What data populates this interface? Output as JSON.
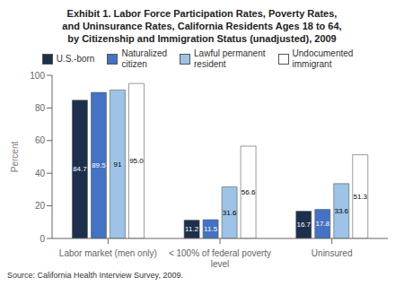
{
  "chart_data": {
    "type": "bar",
    "title": "Exhibit 1. Labor Force Participation Rates, Poverty Rates,\nand Uninsurance Rates, California Residents Ages 18 to 64,\nby Citizenship and Immigration Status (unadjusted), 2009",
    "categories": [
      "Labor market (men only)",
      "< 100% of federal poverty\nlevel",
      "Uninsured"
    ],
    "series": [
      {
        "name": "U.S.-born",
        "color": "#1c2f4d",
        "values": [
          84.7,
          11.2,
          16.7
        ]
      },
      {
        "name": "Naturalized\ncitizen",
        "color": "#4472c4",
        "values": [
          89.5,
          11.5,
          17.8
        ]
      },
      {
        "name": "Lawful permanent\nresident",
        "color": "#9dc3e6",
        "values": [
          91.0,
          31.6,
          33.6
        ]
      },
      {
        "name": "Undocumented\nimmigrant",
        "color": "#ffffff",
        "values": [
          95.0,
          56.6,
          51.3
        ],
        "value_labels": [
          "95.0",
          "56.6",
          "51.3"
        ]
      }
    ],
    "ylabel": "Percent",
    "ylim": [
      0,
      100
    ],
    "yticks": [
      0,
      20,
      40,
      60,
      80,
      100
    ],
    "grid": false,
    "legend": "top",
    "data_labels": true,
    "annotations": [
      "Source: California Health Interview Survey, 2009."
    ]
  }
}
